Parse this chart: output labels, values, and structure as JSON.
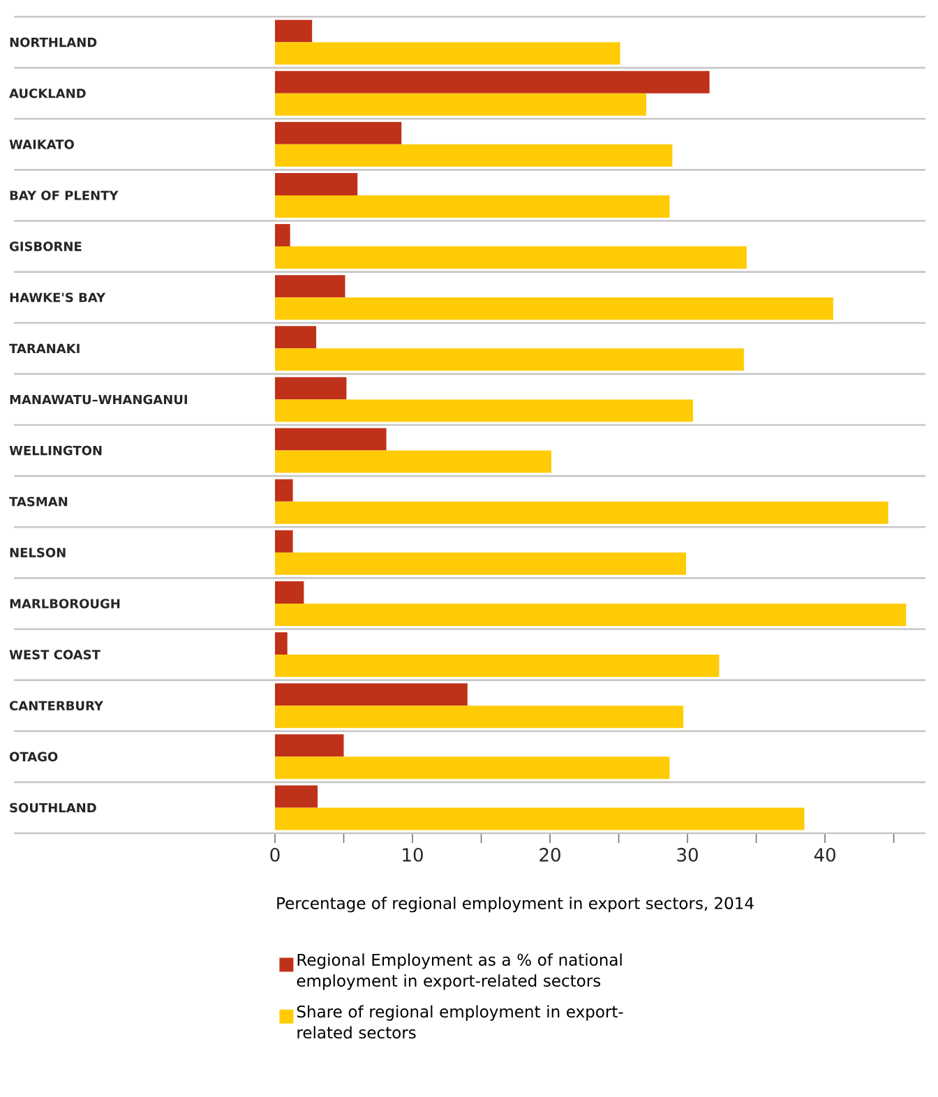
{
  "chart_data": {
    "type": "bar",
    "orientation": "horizontal",
    "xlabel": "Percentage of regional employment in export sectors, 2014",
    "categories": [
      "NORTHLAND",
      "AUCKLAND",
      "WAIKATO",
      "BAY OF PLENTY",
      "GISBORNE",
      "HAWKE'S BAY",
      "TARANAKI",
      "MANAWATU–WHANGANUI",
      "WELLINGTON",
      "TASMAN",
      "NELSON",
      "MARLBOROUGH",
      "WEST COAST",
      "CANTERBURY",
      "OTAGO",
      "SOUTHLAND"
    ],
    "series": [
      {
        "name": "Regional Employment as a % of national employment in export-related sectors",
        "color": "#c0311a",
        "values": [
          2.7,
          31.6,
          9.2,
          6.0,
          1.1,
          5.1,
          3.0,
          5.2,
          8.1,
          1.3,
          1.3,
          2.1,
          0.9,
          14.0,
          5.0,
          3.1
        ]
      },
      {
        "name": "Share of regional employment in export-related sectors",
        "color": "#fecb05",
        "values": [
          25.1,
          27.0,
          28.9,
          28.7,
          34.3,
          40.6,
          34.1,
          30.4,
          20.1,
          44.6,
          29.9,
          45.9,
          32.3,
          29.7,
          28.7,
          38.5
        ]
      }
    ],
    "xlim": [
      0,
      47
    ],
    "xticks": [
      0,
      {
        "value": 5,
        "label": null
      },
      10,
      {
        "value": 15,
        "label": null
      },
      20,
      {
        "value": 25,
        "label": null
      },
      30,
      {
        "value": 35,
        "label": null
      },
      40,
      {
        "value": 45,
        "label": null
      }
    ],
    "legend": "bottom left"
  }
}
